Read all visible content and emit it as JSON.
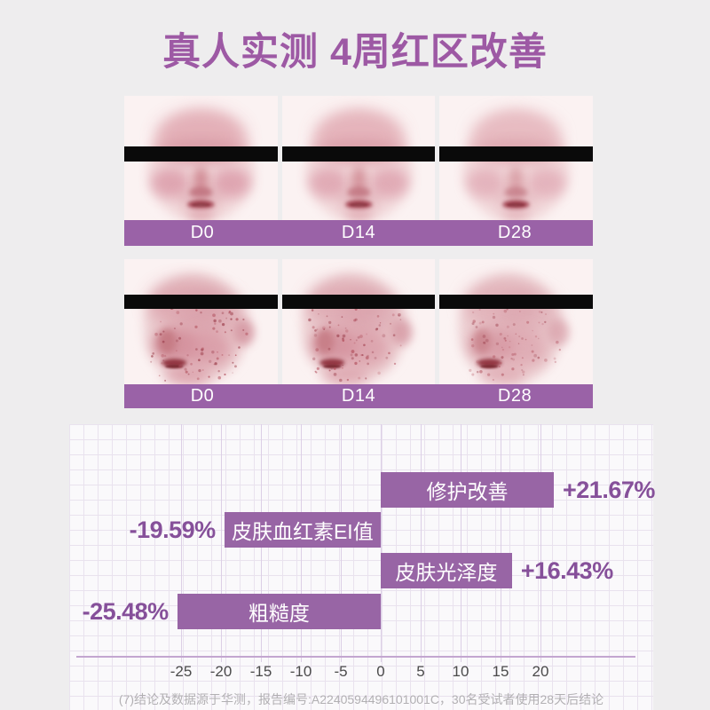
{
  "title": "真人实测 4周红区改善",
  "colors": {
    "page_bg": "#eeedee",
    "title_purple": "#9d59a4",
    "accent_purple": "#9a62a7",
    "bar_purple": "#9865a5",
    "value_text": "#86509a",
    "card_bg": "#faf9fb",
    "censor_black": "#0a0a0a",
    "tick_text": "#4b4b4b",
    "footnote_text": "#b2b0b3"
  },
  "face_comparison": {
    "rows": [
      {
        "view": "front-face-redness-map",
        "time_labels": [
          "D0",
          "D14",
          "D28"
        ]
      },
      {
        "view": "side-face-redness-map",
        "time_labels": [
          "D0",
          "D14",
          "D28"
        ]
      }
    ]
  },
  "chart_data": {
    "type": "bar",
    "orientation": "horizontal-diverging",
    "items": [
      {
        "label": "修护改善",
        "value": 21.67,
        "display": "+21.67%"
      },
      {
        "label": "皮肤血红素EI值",
        "value": -19.59,
        "display": "-19.59%"
      },
      {
        "label": "皮肤光泽度",
        "value": 16.43,
        "display": "+16.43%"
      },
      {
        "label": "粗糙度",
        "value": -25.48,
        "display": "-25.48%"
      }
    ],
    "x_ticks": [
      -25,
      -20,
      -15,
      -10,
      -5,
      0,
      5,
      10,
      15,
      20
    ],
    "xlim": [
      -30,
      25
    ],
    "unit": "%",
    "grid": true,
    "legend": false
  },
  "footnote": "(7)结论及数据源于华测，报告编号:A2240594496101001C，30名受试者使用28天后结论"
}
